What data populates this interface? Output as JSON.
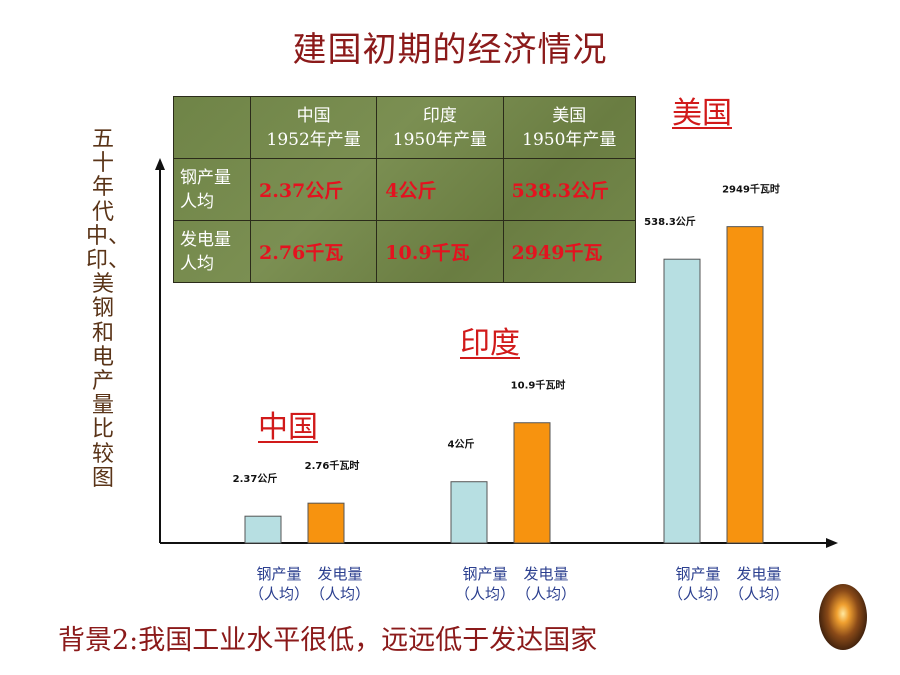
{
  "title": "建国初期的经济情况",
  "side_label": "五十年代中、印、美钢和电产量比较图",
  "bottom_text": "背景2:我国工业水平很低，远远低于发达国家",
  "table": {
    "headers": [
      {
        "line1": "",
        "line2": ""
      },
      {
        "line1": "中国",
        "line2": "1952年产量"
      },
      {
        "line1": "印度",
        "line2": "1950年产量"
      },
      {
        "line1": "美国",
        "line2": "1950年产量"
      }
    ],
    "rows": [
      {
        "label1": "钢产量",
        "label2": "人均",
        "values": [
          "2.37公斤",
          "4公斤",
          "538.3公斤"
        ]
      },
      {
        "label1": "发电量",
        "label2": "人均",
        "values": [
          "2.76千瓦",
          "10.9千瓦",
          "2949千瓦"
        ]
      }
    ]
  },
  "colors": {
    "steel": "#b7dfe2",
    "power": "#f7930f",
    "accent": "#d11a1a"
  },
  "chart_data": {
    "type": "bar",
    "title": "",
    "categories": [
      "中国",
      "印度",
      "美国"
    ],
    "category_labels": [
      {
        "left1": "钢产量",
        "left2": "（人均）",
        "right1": "发电量",
        "right2": "（人均）"
      },
      {
        "left1": "钢产量",
        "left2": "（人均）",
        "right1": "发电量",
        "right2": "（人均）"
      },
      {
        "left1": "钢产量",
        "left2": "（人均）",
        "right1": "发电量",
        "right2": "（人均）"
      }
    ],
    "series": [
      {
        "values": [
          2.37,
          4,
          538.3
        ],
        "labels": [
          "2.37公斤",
          "4公斤",
          "538.3公斤"
        ]
      },
      {
        "values": [
          2.76,
          10.9,
          2949
        ],
        "labels": [
          "2.76千瓦时",
          "10.9千瓦时",
          "2949千瓦时"
        ]
      }
    ],
    "visual_bar_heights": [
      [
        0.07,
        0.104
      ],
      [
        0.16,
        0.314
      ],
      [
        0.741,
        0.826
      ]
    ],
    "scale": "non-linear, illustrative",
    "grid": false
  }
}
